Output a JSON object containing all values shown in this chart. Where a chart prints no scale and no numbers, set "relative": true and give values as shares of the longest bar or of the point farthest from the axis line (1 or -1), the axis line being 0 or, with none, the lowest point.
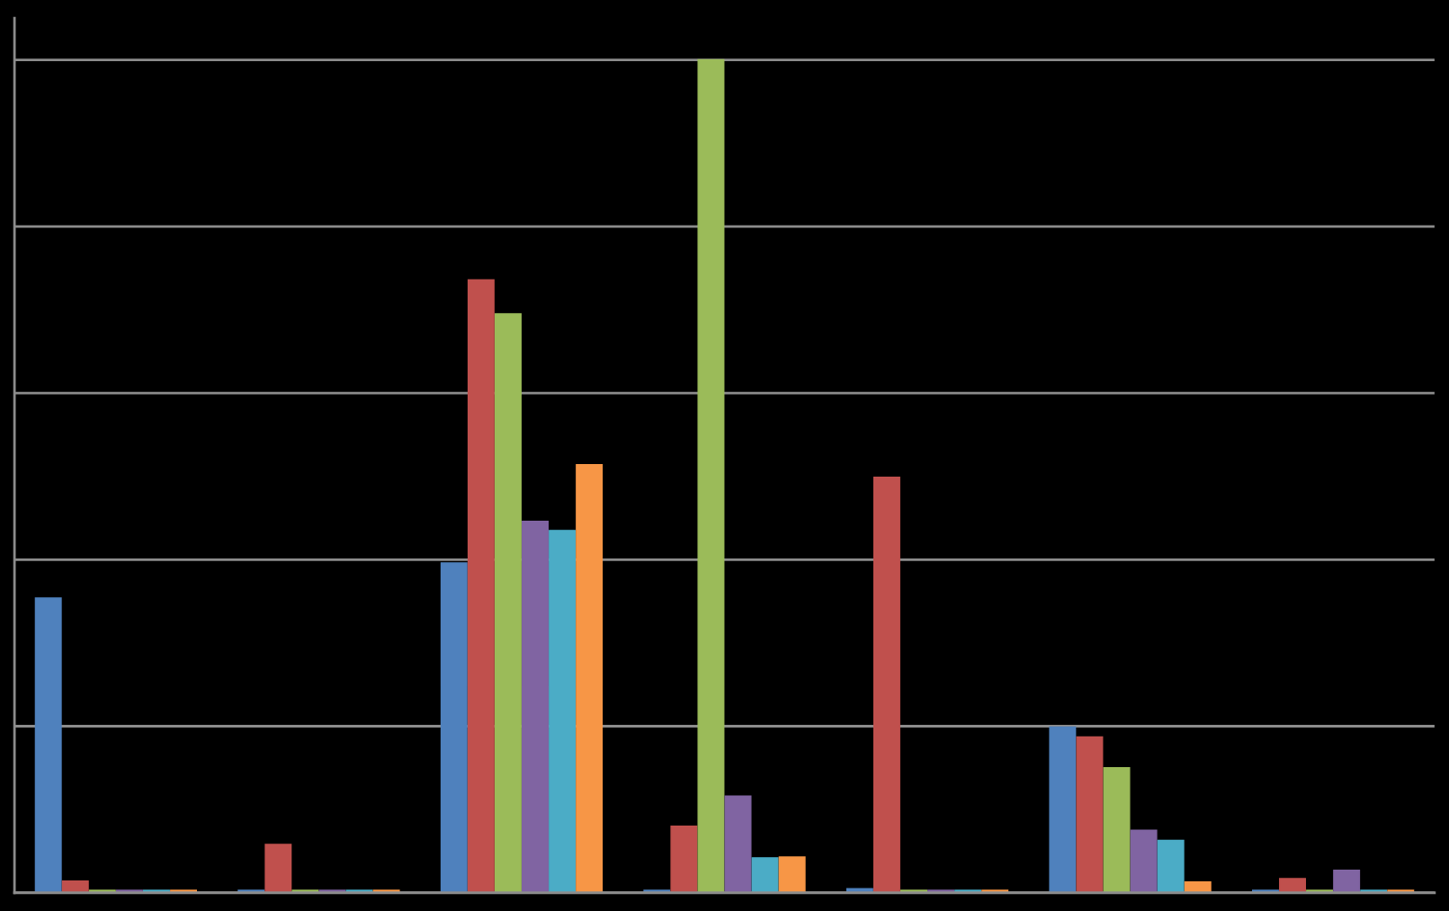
{
  "chart_data": {
    "type": "bar",
    "relative": true,
    "grid": "y",
    "categories": [
      null,
      null,
      null,
      null,
      null,
      null,
      null
    ],
    "series": [
      {
        "color": "#4f81bd",
        "values": [
          0.354,
          0.003,
          0.396,
          0.003,
          0.005,
          0.199,
          0.003
        ]
      },
      {
        "color": "#c0504d",
        "values": [
          0.014,
          0.058,
          0.736,
          0.08,
          0.499,
          0.187,
          0.017
        ]
      },
      {
        "color": "#9bbb59",
        "values": [
          0.003,
          0.003,
          0.695,
          1,
          0.003,
          0.15,
          0.003
        ]
      },
      {
        "color": "#8064a2",
        "values": [
          0.003,
          0.003,
          0.446,
          0.116,
          0.003,
          0.075,
          0.027
        ]
      },
      {
        "color": "#4bacc6",
        "values": [
          0.003,
          0.003,
          0.435,
          0.042,
          0.003,
          0.063,
          0.003
        ]
      },
      {
        "color": "#f79646",
        "values": [
          0.003,
          0.003,
          0.514,
          0.043,
          0.003,
          0.013,
          0.003
        ]
      }
    ]
  }
}
